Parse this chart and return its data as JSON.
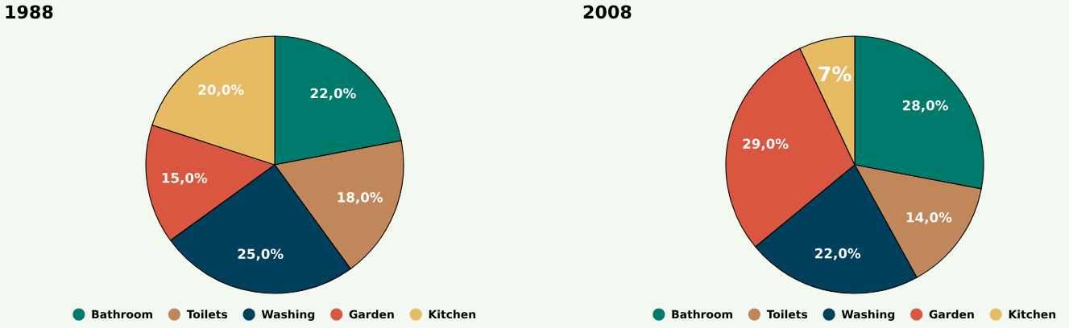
{
  "chart_data": [
    {
      "type": "pie",
      "title": "1988",
      "categories": [
        "Bathroom",
        "Toilets",
        "Washing",
        "Garden",
        "Kitchen"
      ],
      "values": [
        22,
        18,
        25,
        15,
        20
      ],
      "colors": [
        "#007a6a",
        "#c0875a",
        "#00405c",
        "#d95740",
        "#e6bb64"
      ],
      "value_labels": [
        "22,0%",
        "18,0%",
        "25,0%",
        "15,0%",
        "20,0%"
      ],
      "legend": "bottom"
    },
    {
      "type": "pie",
      "title": "2008",
      "categories": [
        "Bathroom",
        "Toilets",
        "Washing",
        "Garden",
        "Kitchen"
      ],
      "values": [
        28,
        14,
        22,
        29,
        7
      ],
      "colors": [
        "#007a6a",
        "#c0875a",
        "#00405c",
        "#d95740",
        "#e6bb64"
      ],
      "value_labels": [
        "28,0%",
        "14,0%",
        "22,0%",
        "29,0%",
        "7%"
      ],
      "legend": "bottom"
    }
  ]
}
